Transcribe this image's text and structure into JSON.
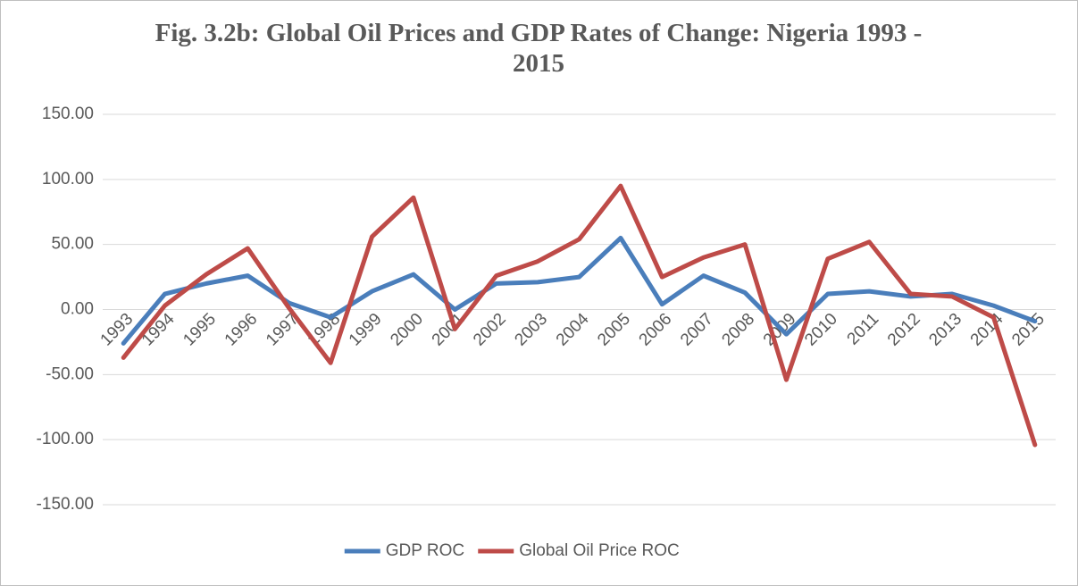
{
  "chart_data": {
    "type": "line",
    "title": "Fig. 3.2b: Global Oil Prices and GDP Rates of Change: Nigeria 1993 - 2015",
    "categories": [
      "1993",
      "1994",
      "1995",
      "1996",
      "1997",
      "1998",
      "1999",
      "2000",
      "2001",
      "2002",
      "2003",
      "2004",
      "2005",
      "2006",
      "2007",
      "2008",
      "2009",
      "2010",
      "2011",
      "2012",
      "2013",
      "2014",
      "2015"
    ],
    "series": [
      {
        "name": "GDP ROC",
        "color": "#4a7ebb",
        "values": [
          -26,
          12,
          20,
          26,
          5,
          -6,
          14,
          27,
          0,
          20,
          21,
          25,
          55,
          4,
          26,
          13,
          -19,
          12,
          14,
          10,
          12,
          3,
          -9
        ]
      },
      {
        "name": "Global Oil Price ROC",
        "color": "#be4b48",
        "values": [
          -37,
          3,
          27,
          47,
          1,
          -41,
          56,
          86,
          -15,
          26,
          37,
          54,
          95,
          25,
          40,
          50,
          -54,
          39,
          52,
          12,
          10,
          -6,
          -104
        ]
      }
    ],
    "ylim": [
      -150,
      150
    ],
    "yticks": [
      {
        "value": -150,
        "label": "-150.00"
      },
      {
        "value": -100,
        "label": "-100.00"
      },
      {
        "value": -50,
        "label": "-50.00"
      },
      {
        "value": 0,
        "label": "0.00"
      },
      {
        "value": 50,
        "label": "50.00"
      },
      {
        "value": 100,
        "label": "100.00"
      },
      {
        "value": 150,
        "label": "150.00"
      }
    ],
    "grid": true,
    "legend": "bottom"
  }
}
